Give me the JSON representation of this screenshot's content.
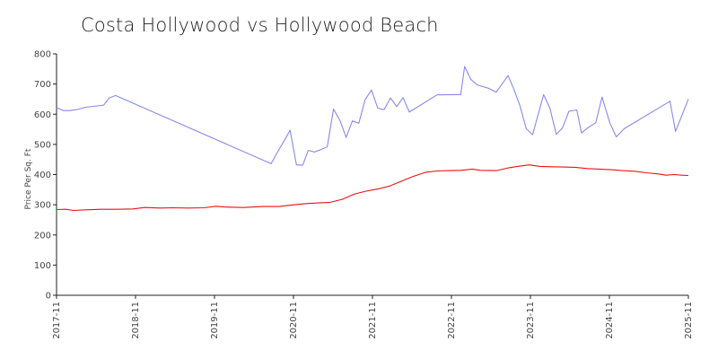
{
  "chart_data": {
    "type": "line",
    "title": "Costa Hollywood vs Hollywood Beach",
    "xlabel": "",
    "ylabel": "Price Per Sq. Ft",
    "ylim": [
      0,
      800
    ],
    "yticks": [
      0,
      100,
      200,
      300,
      400,
      500,
      600,
      700,
      800
    ],
    "xlim": [
      2017.833,
      2025.833
    ],
    "xticks": [
      {
        "value": 2017.833,
        "label": "2017-11"
      },
      {
        "value": 2018.833,
        "label": "2018-11"
      },
      {
        "value": 2019.833,
        "label": "2019-11"
      },
      {
        "value": 2020.833,
        "label": "2020-11"
      },
      {
        "value": 2021.833,
        "label": "2021-11"
      },
      {
        "value": 2022.833,
        "label": "2022-11"
      },
      {
        "value": 2023.833,
        "label": "2023-11"
      },
      {
        "value": 2024.833,
        "label": "2024-11"
      },
      {
        "value": 2025.833,
        "label": "2025-11"
      }
    ],
    "series": [
      {
        "name": "Costa Hollywood",
        "color": "#8888ee",
        "points": [
          [
            2017.833,
            622
          ],
          [
            2017.92,
            612
          ],
          [
            2018.0,
            612
          ],
          [
            2018.1,
            616
          ],
          [
            2018.2,
            623
          ],
          [
            2018.3,
            626
          ],
          [
            2018.43,
            630
          ],
          [
            2018.5,
            654
          ],
          [
            2018.58,
            662
          ],
          [
            2020.55,
            436
          ],
          [
            2020.62,
            470
          ],
          [
            2020.7,
            505
          ],
          [
            2020.79,
            547
          ],
          [
            2020.87,
            432
          ],
          [
            2020.95,
            431
          ],
          [
            2021.02,
            480
          ],
          [
            2021.1,
            475
          ],
          [
            2021.18,
            483
          ],
          [
            2021.26,
            492
          ],
          [
            2021.34,
            617
          ],
          [
            2021.42,
            580
          ],
          [
            2021.5,
            523
          ],
          [
            2021.58,
            578
          ],
          [
            2021.66,
            570
          ],
          [
            2021.74,
            648
          ],
          [
            2021.82,
            680
          ],
          [
            2021.9,
            620
          ],
          [
            2021.98,
            615
          ],
          [
            2022.06,
            654
          ],
          [
            2022.14,
            625
          ],
          [
            2022.22,
            655
          ],
          [
            2022.3,
            607
          ],
          [
            2022.65,
            664
          ],
          [
            2022.95,
            665
          ],
          [
            2023.0,
            758
          ],
          [
            2023.08,
            715
          ],
          [
            2023.16,
            697
          ],
          [
            2023.3,
            686
          ],
          [
            2023.4,
            673
          ],
          [
            2023.55,
            728
          ],
          [
            2023.62,
            685
          ],
          [
            2023.7,
            628
          ],
          [
            2023.78,
            552
          ],
          [
            2023.86,
            532
          ],
          [
            2024.0,
            665
          ],
          [
            2024.08,
            620
          ],
          [
            2024.16,
            533
          ],
          [
            2024.24,
            555
          ],
          [
            2024.32,
            610
          ],
          [
            2024.42,
            614
          ],
          [
            2024.48,
            538
          ],
          [
            2024.56,
            555
          ],
          [
            2024.66,
            572
          ],
          [
            2024.74,
            657
          ],
          [
            2024.84,
            570
          ],
          [
            2024.92,
            525
          ],
          [
            2025.02,
            552
          ],
          [
            2025.6,
            643
          ],
          [
            2025.67,
            543
          ],
          [
            2025.833,
            650
          ]
        ]
      },
      {
        "name": "Hollywood Beach",
        "color": "#ee1111",
        "points": [
          [
            2017.833,
            284
          ],
          [
            2017.95,
            285
          ],
          [
            2018.05,
            281
          ],
          [
            2018.2,
            283
          ],
          [
            2018.4,
            285
          ],
          [
            2018.6,
            285
          ],
          [
            2018.8,
            286
          ],
          [
            2018.95,
            291
          ],
          [
            2019.15,
            289
          ],
          [
            2019.3,
            290
          ],
          [
            2019.5,
            289
          ],
          [
            2019.7,
            290
          ],
          [
            2019.85,
            295
          ],
          [
            2020.0,
            292
          ],
          [
            2020.2,
            291
          ],
          [
            2020.45,
            294
          ],
          [
            2020.65,
            294
          ],
          [
            2020.85,
            300
          ],
          [
            2021.0,
            304
          ],
          [
            2021.15,
            306
          ],
          [
            2021.3,
            308
          ],
          [
            2021.45,
            318
          ],
          [
            2021.6,
            335
          ],
          [
            2021.75,
            345
          ],
          [
            2021.9,
            352
          ],
          [
            2022.05,
            362
          ],
          [
            2022.2,
            378
          ],
          [
            2022.35,
            394
          ],
          [
            2022.5,
            407
          ],
          [
            2022.65,
            412
          ],
          [
            2022.8,
            413
          ],
          [
            2022.95,
            414
          ],
          [
            2023.1,
            418
          ],
          [
            2023.2,
            414
          ],
          [
            2023.4,
            413
          ],
          [
            2023.55,
            422
          ],
          [
            2023.7,
            428
          ],
          [
            2023.82,
            432
          ],
          [
            2023.95,
            427
          ],
          [
            2024.1,
            426
          ],
          [
            2024.25,
            425
          ],
          [
            2024.4,
            424
          ],
          [
            2024.55,
            420
          ],
          [
            2024.7,
            418
          ],
          [
            2024.85,
            416
          ],
          [
            2025.0,
            413
          ],
          [
            2025.15,
            411
          ],
          [
            2025.3,
            406
          ],
          [
            2025.45,
            402
          ],
          [
            2025.55,
            398
          ],
          [
            2025.65,
            400
          ],
          [
            2025.75,
            398
          ],
          [
            2025.833,
            397
          ]
        ]
      }
    ]
  }
}
